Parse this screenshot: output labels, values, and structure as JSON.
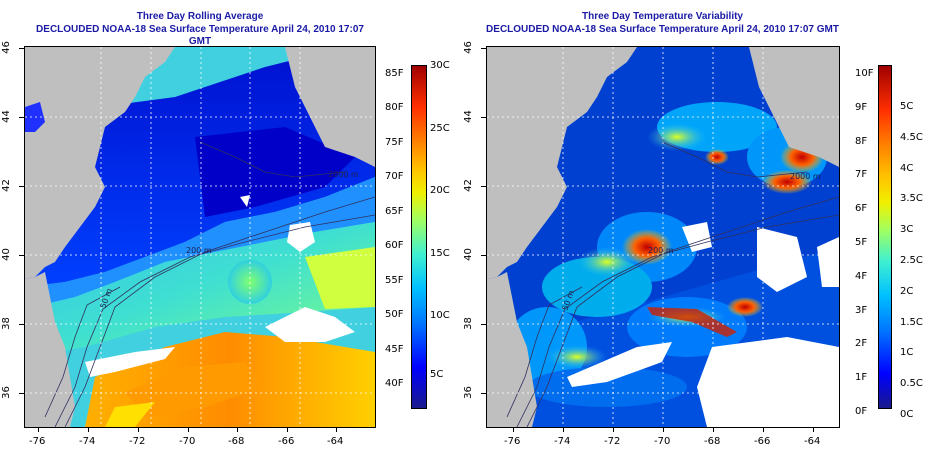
{
  "left_panel": {
    "title": "Three Day Rolling Average",
    "subtitle": "DECLOUDED NOAA-18 Sea Surface Temperature April 24, 2010 17:07 GMT",
    "x_ticks": [
      "-76",
      "-74",
      "-72",
      "-70",
      "-68",
      "-66",
      "-64"
    ],
    "y_ticks": [
      "36",
      "38",
      "40",
      "42",
      "44",
      "46"
    ],
    "contour_labels": [
      "2000 m",
      "200 m",
      "50 m"
    ],
    "colorbar_F": [
      "85F",
      "80F",
      "75F",
      "70F",
      "65F",
      "60F",
      "55F",
      "50F",
      "45F",
      "40F"
    ],
    "colorbar_C": [
      "30C",
      "25C",
      "20C",
      "15C",
      "10C",
      "5C"
    ]
  },
  "right_panel": {
    "title": "Three Day Temperature Variability",
    "subtitle": "DECLOUDED NOAA-18 Sea Surface Temperature April 24, 2010 17:07 GMT",
    "x_ticks": [
      "-76",
      "-74",
      "-72",
      "-70",
      "-68",
      "-66",
      "-64"
    ],
    "y_ticks": [
      "36",
      "38",
      "40",
      "42",
      "44",
      "46"
    ],
    "contour_labels": [
      "2000 m",
      "200 m",
      "50 m"
    ],
    "colorbar_F": [
      "10F",
      "9F",
      "8F",
      "7F",
      "6F",
      "5F",
      "4F",
      "3F",
      "2F",
      "1F",
      "0F"
    ],
    "colorbar_C": [
      "5C",
      "4.5C",
      "4C",
      "3.5C",
      "3C",
      "2.5C",
      "2C",
      "1.5C",
      "1C",
      "0.5C",
      "0C"
    ]
  },
  "colors": {
    "land": "#bfbfbf",
    "title": "#1a1aa6",
    "colormap": [
      "#1a1a8c",
      "#0000ff",
      "#0060ff",
      "#00b0ff",
      "#20e0e0",
      "#70ff90",
      "#e0ff20",
      "#ffd000",
      "#ff8000",
      "#ff2000",
      "#a00000"
    ]
  }
}
